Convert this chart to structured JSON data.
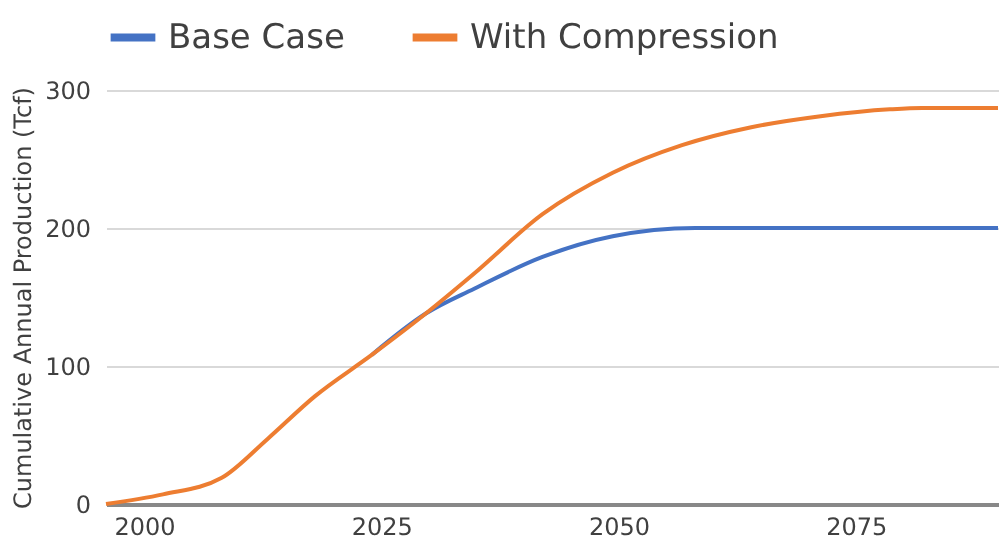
{
  "chart_data": {
    "type": "line",
    "ylabel": "Cumulative Annual Production (Tcf)",
    "xlim": [
      1996,
      2090
    ],
    "xticks": [
      2000,
      2025,
      2050,
      2075
    ],
    "ylim": [
      0,
      300
    ],
    "yticks": [
      0,
      100,
      200,
      300
    ],
    "grid": "y",
    "legend": "top",
    "marker": "none",
    "line_style": "solid",
    "series": [
      {
        "name": "Base Case",
        "color": "#4472c4",
        "x": [
          2024,
          2029.7,
          2034.8,
          2042,
          2049.4,
          2058.1,
          2090
        ],
        "values": [
          108,
          138,
          156,
          179,
          194,
          200,
          200
        ]
      },
      {
        "name": "With Compression",
        "color": "#ed7d31",
        "x": [
          1996,
          2002,
          2008.2,
          2013,
          2018,
          2024,
          2029.7,
          2034.8,
          2042,
          2049.4,
          2056.7,
          2064,
          2071.3,
          2078.6,
          2082,
          2090
        ],
        "values": [
          0,
          7,
          19,
          47,
          78,
          108,
          138,
          167,
          210,
          240,
          260,
          273,
          281,
          286,
          287,
          287
        ]
      }
    ]
  }
}
